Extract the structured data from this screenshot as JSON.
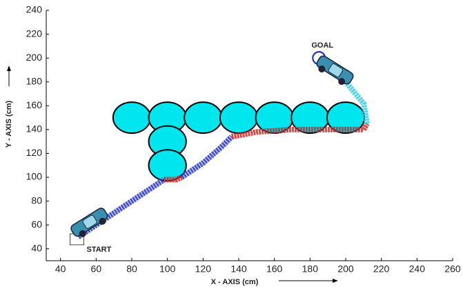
{
  "chart_data": {
    "type": "path",
    "xlabel": "X - AXIS (cm)",
    "ylabel": "Y - AXIS (cm)",
    "xlim": [
      32,
      260
    ],
    "ylim": [
      30,
      240
    ],
    "xticks": [
      40,
      60,
      80,
      100,
      120,
      140,
      160,
      180,
      200,
      220,
      240,
      260
    ],
    "yticks": [
      40,
      60,
      80,
      100,
      120,
      140,
      160,
      180,
      200,
      220,
      240
    ],
    "obstacles": {
      "color": "#00e5ee",
      "rx": 10.5,
      "ry": 13,
      "x": [
        80,
        100,
        120,
        140,
        160,
        180,
        200,
        100,
        100
      ],
      "y": [
        150,
        150,
        150,
        150,
        150,
        150,
        150,
        130,
        110
      ]
    },
    "series": [
      {
        "color": "#2233dd",
        "x": [
          50,
          60,
          75,
          90,
          98
        ],
        "y": [
          50,
          60,
          75,
          90,
          98
        ]
      },
      {
        "color": "#dd2222",
        "x": [
          98,
          105,
          108
        ],
        "y": [
          98,
          98,
          100
        ]
      },
      {
        "color": "#2233dd",
        "x": [
          108,
          120,
          130,
          136
        ],
        "y": [
          100,
          112,
          125,
          134
        ]
      },
      {
        "color": "#dd2222",
        "x": [
          136,
          150,
          170,
          190,
          210,
          212
        ],
        "y": [
          134,
          138,
          140,
          140,
          140,
          145
        ]
      },
      {
        "color": "#33ccee",
        "x": [
          212,
          210,
          200,
          190,
          186
        ],
        "y": [
          145,
          162,
          180,
          192,
          198
        ]
      }
    ],
    "start": {
      "label": "START",
      "x": 50,
      "y": 48
    },
    "goal": {
      "label": "GOAL",
      "x": 185,
      "y": 200
    }
  }
}
